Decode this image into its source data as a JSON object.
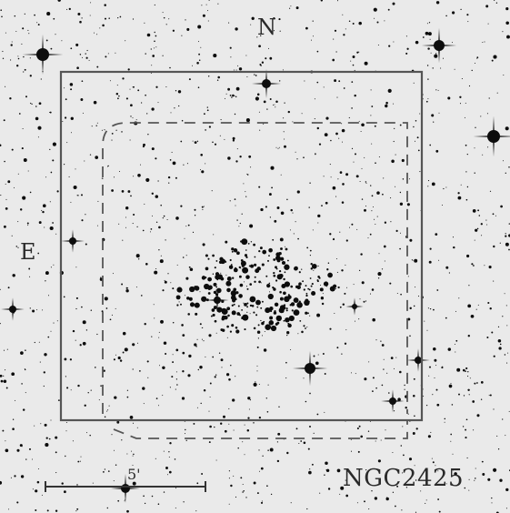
{
  "figure": {
    "cluster_name": "NGC2425",
    "compass_north": "N",
    "compass_east": "E",
    "scale_bar_label": "5'"
  },
  "colors": {
    "sky_background": "#eaeaea",
    "stars": "#0d0d0d",
    "overlay_lines": "#555555"
  }
}
